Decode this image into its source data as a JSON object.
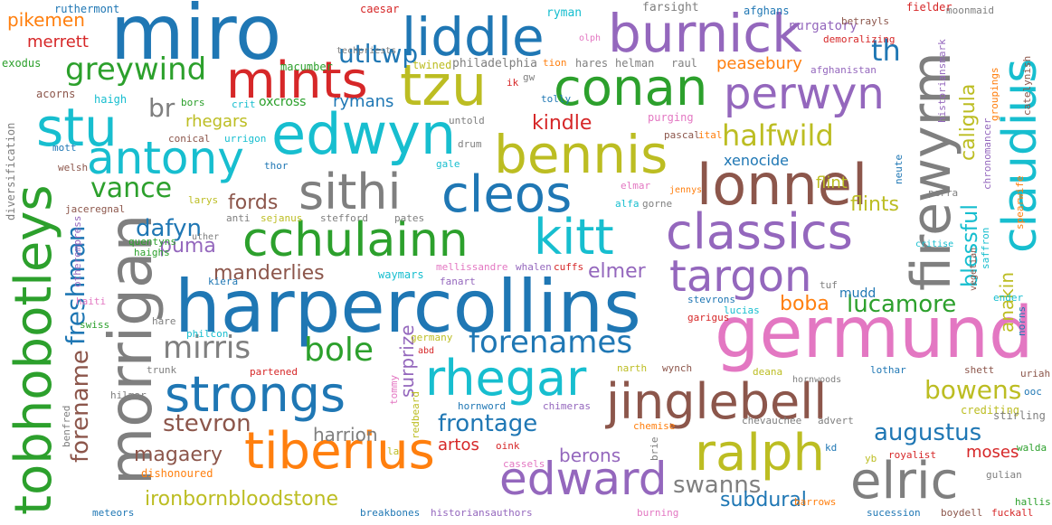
{
  "palette": {
    "blue": "#1f77b4",
    "orange": "#ff7f0e",
    "green": "#2ca02c",
    "red": "#d62728",
    "purple": "#9467bd",
    "brown": "#8c564b",
    "pink": "#e377c2",
    "gray": "#7f7f7f",
    "olive": "#bcbd22",
    "cyan": "#17becf"
  },
  "words": [
    {
      "text": "miro",
      "color": "blue"
    },
    {
      "text": "liddle",
      "color": "blue"
    },
    {
      "text": "burnick",
      "color": "purple"
    },
    {
      "text": "germund",
      "color": "pink"
    },
    {
      "text": "harpercollins",
      "color": "blue"
    },
    {
      "text": "morrigan",
      "color": "gray"
    },
    {
      "text": "tobhobotleys",
      "color": "green"
    },
    {
      "text": "firewyrm",
      "color": "gray"
    },
    {
      "text": "edwyn",
      "color": "cyan"
    },
    {
      "text": "conan",
      "color": "green"
    },
    {
      "text": "tzu",
      "color": "olive"
    },
    {
      "text": "perwyn",
      "color": "purple"
    },
    {
      "text": "mints",
      "color": "red"
    },
    {
      "text": "stu",
      "color": "cyan"
    },
    {
      "text": "antony",
      "color": "cyan"
    },
    {
      "text": "bennis",
      "color": "olive"
    },
    {
      "text": "sithi",
      "color": "gray"
    },
    {
      "text": "cleos",
      "color": "blue"
    },
    {
      "text": "lonnel",
      "color": "brown"
    },
    {
      "text": "claudius",
      "color": "cyan"
    },
    {
      "text": "cchulainn",
      "color": "green"
    },
    {
      "text": "kitt",
      "color": "cyan"
    },
    {
      "text": "classics",
      "color": "purple"
    },
    {
      "text": "targon",
      "color": "purple"
    },
    {
      "text": "strongs",
      "color": "blue"
    },
    {
      "text": "rhegar",
      "color": "cyan"
    },
    {
      "text": "jinglebell",
      "color": "brown"
    },
    {
      "text": "tiberius",
      "color": "orange"
    },
    {
      "text": "ralph",
      "color": "olive"
    },
    {
      "text": "edward",
      "color": "purple"
    },
    {
      "text": "elric",
      "color": "gray"
    },
    {
      "text": "greywind",
      "color": "green"
    },
    {
      "text": "halfwild",
      "color": "olive"
    },
    {
      "text": "forenames",
      "color": "blue"
    },
    {
      "text": "mirris",
      "color": "gray"
    },
    {
      "text": "bole",
      "color": "green"
    },
    {
      "text": "vance",
      "color": "green"
    },
    {
      "text": "utltwp",
      "color": "blue"
    },
    {
      "text": "th",
      "color": "blue"
    },
    {
      "text": "br",
      "color": "gray"
    },
    {
      "text": "kindle",
      "color": "red"
    },
    {
      "text": "dafyn",
      "color": "blue"
    },
    {
      "text": "fords",
      "color": "brown"
    },
    {
      "text": "puma",
      "color": "purple"
    },
    {
      "text": "manderlies",
      "color": "brown"
    },
    {
      "text": "freshman",
      "color": "blue"
    },
    {
      "text": "forename",
      "color": "brown"
    },
    {
      "text": "stevron",
      "color": "brown"
    },
    {
      "text": "magaery",
      "color": "brown"
    },
    {
      "text": "ironbornbloodstone",
      "color": "olive"
    },
    {
      "text": "surprize",
      "color": "purple"
    },
    {
      "text": "frontage",
      "color": "blue"
    },
    {
      "text": "harrion",
      "color": "gray"
    },
    {
      "text": "artos",
      "color": "red"
    },
    {
      "text": "berons",
      "color": "purple"
    },
    {
      "text": "swanns",
      "color": "gray"
    },
    {
      "text": "subdural",
      "color": "blue"
    },
    {
      "text": "augustus",
      "color": "blue"
    },
    {
      "text": "moses",
      "color": "red"
    },
    {
      "text": "bowens",
      "color": "olive"
    },
    {
      "text": "boba",
      "color": "orange"
    },
    {
      "text": "lucamore",
      "color": "green"
    },
    {
      "text": "elmer",
      "color": "purple"
    },
    {
      "text": "anakin",
      "color": "olive"
    },
    {
      "text": "blessful",
      "color": "cyan"
    },
    {
      "text": "caligula",
      "color": "olive"
    },
    {
      "text": "flints",
      "color": "olive"
    },
    {
      "text": "flint",
      "color": "olive"
    },
    {
      "text": "xenocide",
      "color": "blue"
    },
    {
      "text": "peasebury",
      "color": "orange"
    },
    {
      "text": "rhegars",
      "color": "olive"
    },
    {
      "text": "rymans",
      "color": "blue"
    },
    {
      "text": "oxcross",
      "color": "green"
    },
    {
      "text": "pikemen",
      "color": "orange"
    },
    {
      "text": "merrett",
      "color": "red"
    },
    {
      "text": "mudd",
      "color": "blue"
    },
    {
      "text": "ruthermont",
      "color": "blue"
    },
    {
      "text": "caesar",
      "color": "red"
    },
    {
      "text": "ryman",
      "color": "cyan"
    },
    {
      "text": "farsight",
      "color": "gray"
    },
    {
      "text": "afghans",
      "color": "blue"
    },
    {
      "text": "purgatory",
      "color": "purple"
    },
    {
      "text": "fielder",
      "color": "red"
    },
    {
      "text": "moonmaid",
      "color": "gray"
    },
    {
      "text": "betrayls",
      "color": "brown"
    },
    {
      "text": "demoralizing",
      "color": "red"
    },
    {
      "text": "exodus",
      "color": "green"
    },
    {
      "text": "macumber",
      "color": "green"
    },
    {
      "text": "techpriests",
      "color": "gray"
    },
    {
      "text": "twined",
      "color": "olive"
    },
    {
      "text": "philadelphia",
      "color": "gray"
    },
    {
      "text": "tion",
      "color": "orange"
    },
    {
      "text": "hares",
      "color": "gray"
    },
    {
      "text": "helman",
      "color": "gray"
    },
    {
      "text": "raul",
      "color": "gray"
    },
    {
      "text": "afghanistan",
      "color": "purple"
    },
    {
      "text": "olph",
      "color": "pink"
    },
    {
      "text": "acorns",
      "color": "brown"
    },
    {
      "text": "haigh",
      "color": "cyan"
    },
    {
      "text": "bors",
      "color": "green"
    },
    {
      "text": "crit",
      "color": "cyan"
    },
    {
      "text": "ik",
      "color": "red"
    },
    {
      "text": "gw",
      "color": "gray"
    },
    {
      "text": "tolly",
      "color": "blue"
    },
    {
      "text": "untold",
      "color": "gray"
    },
    {
      "text": "purging",
      "color": "pink"
    },
    {
      "text": "pascal",
      "color": "brown"
    },
    {
      "text": "ital",
      "color": "orange"
    },
    {
      "text": "mott",
      "color": "blue"
    },
    {
      "text": "conical",
      "color": "brown"
    },
    {
      "text": "urrigon",
      "color": "cyan"
    },
    {
      "text": "drum",
      "color": "gray"
    },
    {
      "text": "welsh",
      "color": "brown"
    },
    {
      "text": "thor",
      "color": "blue"
    },
    {
      "text": "gale",
      "color": "cyan"
    },
    {
      "text": "larys",
      "color": "olive"
    },
    {
      "text": "elmar",
      "color": "pink"
    },
    {
      "text": "jennys",
      "color": "orange"
    },
    {
      "text": "jaceregnal",
      "color": "brown"
    },
    {
      "text": "anti",
      "color": "gray"
    },
    {
      "text": "sejanus",
      "color": "olive"
    },
    {
      "text": "stefford",
      "color": "gray"
    },
    {
      "text": "pates",
      "color": "gray"
    },
    {
      "text": "alfa",
      "color": "cyan"
    },
    {
      "text": "gorne",
      "color": "gray"
    },
    {
      "text": "perra",
      "color": "gray"
    },
    {
      "text": "critise",
      "color": "cyan"
    },
    {
      "text": "quentyns",
      "color": "green"
    },
    {
      "text": "uther",
      "color": "gray"
    },
    {
      "text": "haighs",
      "color": "green"
    },
    {
      "text": "kiera",
      "color": "blue"
    },
    {
      "text": "waymars",
      "color": "cyan"
    },
    {
      "text": "mellissandre",
      "color": "pink"
    },
    {
      "text": "whalen",
      "color": "purple"
    },
    {
      "text": "cuffs",
      "color": "red"
    },
    {
      "text": "fanart",
      "color": "purple"
    },
    {
      "text": "tuf",
      "color": "gray"
    },
    {
      "text": "vegetian",
      "color": "brown"
    },
    {
      "text": "saffron",
      "color": "cyan"
    },
    {
      "text": "ender",
      "color": "cyan"
    },
    {
      "text": "stevrons",
      "color": "blue"
    },
    {
      "text": "lucias",
      "color": "cyan"
    },
    {
      "text": "garigus",
      "color": "red"
    },
    {
      "text": "swiss",
      "color": "green"
    },
    {
      "text": "hare",
      "color": "gray"
    },
    {
      "text": "philcon",
      "color": "cyan"
    },
    {
      "text": "germany",
      "color": "olive"
    },
    {
      "text": "abd",
      "color": "red"
    },
    {
      "text": "narth",
      "color": "olive"
    },
    {
      "text": "wynch",
      "color": "brown"
    },
    {
      "text": "deana",
      "color": "olive"
    },
    {
      "text": "lothar",
      "color": "blue"
    },
    {
      "text": "hornwoods",
      "color": "gray"
    },
    {
      "text": "shett",
      "color": "brown"
    },
    {
      "text": "uriah",
      "color": "brown"
    },
    {
      "text": "ooc",
      "color": "blue"
    },
    {
      "text": "trunk",
      "color": "gray"
    },
    {
      "text": "partened",
      "color": "red"
    },
    {
      "text": "hilmar",
      "color": "gray"
    },
    {
      "text": "hornword",
      "color": "blue"
    },
    {
      "text": "chimeras",
      "color": "purple"
    },
    {
      "text": "chemise",
      "color": "orange"
    },
    {
      "text": "chevauchee",
      "color": "gray"
    },
    {
      "text": "advert",
      "color": "gray"
    },
    {
      "text": "crediting",
      "color": "olive"
    },
    {
      "text": "stirling",
      "color": "gray"
    },
    {
      "text": "benfred",
      "color": "gray"
    },
    {
      "text": "oink",
      "color": "red"
    },
    {
      "text": "cassels",
      "color": "pink"
    },
    {
      "text": "brie",
      "color": "gray"
    },
    {
      "text": "kd",
      "color": "blue"
    },
    {
      "text": "royalist",
      "color": "red"
    },
    {
      "text": "walda",
      "color": "green"
    },
    {
      "text": "dishonoured",
      "color": "orange"
    },
    {
      "text": "yb",
      "color": "olive"
    },
    {
      "text": "gulian",
      "color": "gray"
    },
    {
      "text": "meteors",
      "color": "blue"
    },
    {
      "text": "breakbones",
      "color": "blue"
    },
    {
      "text": "historiansauthors",
      "color": "purple"
    },
    {
      "text": "burning",
      "color": "pink"
    },
    {
      "text": "barrows",
      "color": "orange"
    },
    {
      "text": "sucession",
      "color": "blue"
    },
    {
      "text": "boydell",
      "color": "brown"
    },
    {
      "text": "fuckall",
      "color": "red"
    },
    {
      "text": "hallis",
      "color": "green"
    },
    {
      "text": "groupings",
      "color": "orange"
    },
    {
      "text": "catelynish",
      "color": "brown"
    },
    {
      "text": "chronomancer",
      "color": "purple"
    },
    {
      "text": "spearwife",
      "color": "orange"
    },
    {
      "text": "neute",
      "color": "blue"
    },
    {
      "text": "norns",
      "color": "blue"
    },
    {
      "text": "diversification",
      "color": "gray"
    },
    {
      "text": "otherempress",
      "color": "purple"
    },
    {
      "text": "haiti",
      "color": "pink"
    },
    {
      "text": "tommy",
      "color": "pink"
    },
    {
      "text": "redbeard",
      "color": "olive"
    },
    {
      "text": "la",
      "color": "olive"
    },
    {
      "text": "historiansmark",
      "color": "purple"
    }
  ]
}
